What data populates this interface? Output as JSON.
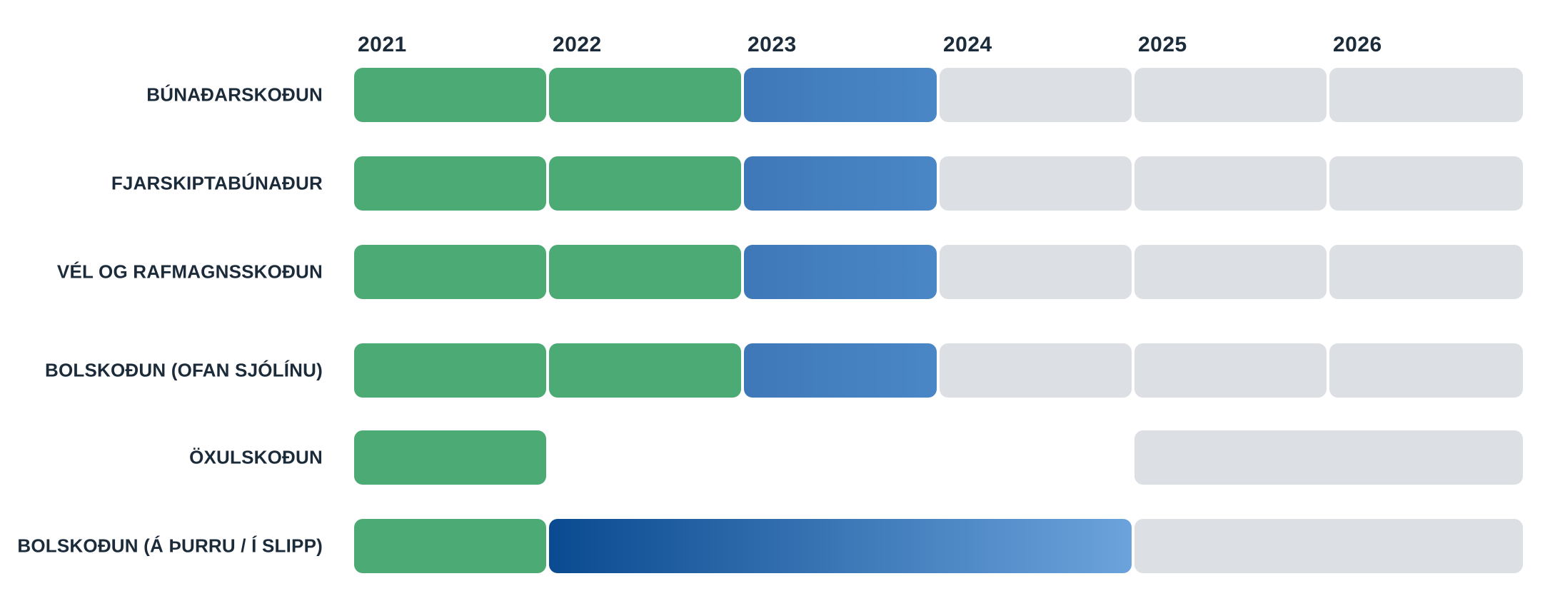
{
  "chart_data": {
    "type": "timeline",
    "years": [
      "2021",
      "2022",
      "2023",
      "2024",
      "2025",
      "2026"
    ],
    "rows": [
      {
        "label": "BÚNAÐARSKOÐUN",
        "segments": [
          {
            "start": "2021",
            "end": "2021",
            "status": "done"
          },
          {
            "start": "2022",
            "end": "2022",
            "status": "done"
          },
          {
            "start": "2023",
            "end": "2023",
            "status": "current"
          },
          {
            "start": "2024",
            "end": "2024",
            "status": "upcoming"
          },
          {
            "start": "2025",
            "end": "2025",
            "status": "upcoming"
          },
          {
            "start": "2026",
            "end": "2026",
            "status": "upcoming"
          }
        ]
      },
      {
        "label": "FJARSKIPTABÚNAÐUR",
        "segments": [
          {
            "start": "2021",
            "end": "2021",
            "status": "done"
          },
          {
            "start": "2022",
            "end": "2022",
            "status": "done"
          },
          {
            "start": "2023",
            "end": "2023",
            "status": "current"
          },
          {
            "start": "2024",
            "end": "2024",
            "status": "upcoming"
          },
          {
            "start": "2025",
            "end": "2025",
            "status": "upcoming"
          },
          {
            "start": "2026",
            "end": "2026",
            "status": "upcoming"
          }
        ]
      },
      {
        "label": "VÉL OG RAFMAGNSSKOÐUN",
        "segments": [
          {
            "start": "2021",
            "end": "2021",
            "status": "done"
          },
          {
            "start": "2022",
            "end": "2022",
            "status": "done"
          },
          {
            "start": "2023",
            "end": "2023",
            "status": "current"
          },
          {
            "start": "2024",
            "end": "2024",
            "status": "upcoming"
          },
          {
            "start": "2025",
            "end": "2025",
            "status": "upcoming"
          },
          {
            "start": "2026",
            "end": "2026",
            "status": "upcoming"
          }
        ]
      },
      {
        "label": "BOLSKOÐUN (OFAN SJÓLÍNU)",
        "segments": [
          {
            "start": "2021",
            "end": "2021",
            "status": "done"
          },
          {
            "start": "2022",
            "end": "2022",
            "status": "done"
          },
          {
            "start": "2023",
            "end": "2023",
            "status": "current"
          },
          {
            "start": "2024",
            "end": "2024",
            "status": "upcoming"
          },
          {
            "start": "2025",
            "end": "2025",
            "status": "upcoming"
          },
          {
            "start": "2026",
            "end": "2026",
            "status": "upcoming"
          }
        ]
      },
      {
        "label": "ÖXULSKOÐUN",
        "segments": [
          {
            "start": "2021",
            "end": "2021",
            "status": "done"
          },
          {
            "start": "2025",
            "end": "2026",
            "status": "upcoming"
          }
        ]
      },
      {
        "label": "BOLSKOÐUN (Á ÞURRU / Í SLIPP)",
        "segments": [
          {
            "start": "2021",
            "end": "2021",
            "status": "done"
          },
          {
            "start": "2022",
            "end": "2024",
            "status": "window"
          },
          {
            "start": "2025",
            "end": "2026",
            "status": "upcoming"
          }
        ]
      }
    ],
    "colors": {
      "done": "#4caa74",
      "current_start": "#3f78b8",
      "current_end": "#4a87c6",
      "window_start": "#0a4a90",
      "window_end": "#6ca3dc",
      "upcoming": "#dcdfe3",
      "text": "#1c2b3a"
    }
  }
}
